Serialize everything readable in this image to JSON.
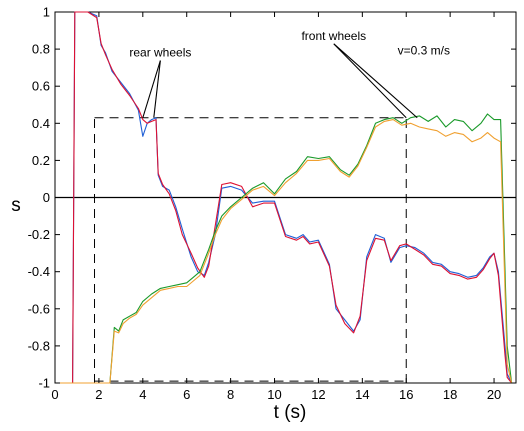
{
  "chart_data": {
    "type": "line",
    "title": "",
    "xlabel": "t (s)",
    "ylabel": "s",
    "xlim": [
      0,
      21
    ],
    "ylim": [
      -1,
      1
    ],
    "xticks": [
      0,
      2,
      4,
      6,
      8,
      10,
      12,
      14,
      16,
      18,
      20
    ],
    "yticks": [
      -1,
      -0.8,
      -0.6,
      -0.4,
      -0.2,
      0,
      0.2,
      0.4,
      0.6,
      0.8,
      1
    ],
    "grid": false,
    "legend": "none",
    "colors": {
      "blue": "#1f5fd6",
      "red": "#dd1133",
      "green": "#1a9a2a",
      "orange": "#f0a030",
      "axis": "#000000"
    },
    "series": [
      {
        "color": "blue",
        "x": [
          0,
          0.8,
          0.9,
          1.1,
          1.5,
          1.9,
          2.1,
          2.3,
          2.6,
          3.0,
          3.4,
          3.8,
          4.0,
          4.2,
          4.4,
          4.6,
          4.7,
          4.9,
          5.2,
          5.5,
          5.8,
          6.2,
          6.5,
          6.8,
          7.0,
          7.3,
          7.6,
          8.0,
          8.5,
          9.0,
          9.5,
          10.0,
          10.5,
          11.0,
          11.3,
          11.6,
          12.0,
          12.5,
          12.8,
          13.2,
          13.6,
          13.9,
          14.2,
          14.6,
          15.0,
          15.3,
          15.7,
          16.0,
          16.4,
          16.8,
          17.2,
          17.6,
          18.0,
          18.4,
          18.8,
          19.2,
          19.5,
          19.8,
          20.0,
          20.2,
          20.5,
          20.6,
          20.8,
          21.0
        ],
        "values": [
          -1,
          -1,
          1,
          1,
          1,
          0.98,
          0.82,
          0.78,
          0.68,
          0.62,
          0.56,
          0.47,
          0.33,
          0.4,
          0.42,
          0.43,
          0.12,
          0.06,
          0.04,
          -0.05,
          -0.17,
          -0.32,
          -0.4,
          -0.42,
          -0.35,
          -0.2,
          0.05,
          0.06,
          0.04,
          -0.03,
          -0.02,
          -0.02,
          -0.2,
          -0.22,
          -0.2,
          -0.24,
          -0.23,
          -0.36,
          -0.6,
          -0.66,
          -0.72,
          -0.66,
          -0.32,
          -0.2,
          -0.22,
          -0.35,
          -0.27,
          -0.26,
          -0.27,
          -0.3,
          -0.35,
          -0.36,
          -0.4,
          -0.41,
          -0.43,
          -0.42,
          -0.38,
          -0.32,
          -0.3,
          -0.4,
          -0.8,
          -0.95,
          -1,
          -1
        ]
      },
      {
        "color": "red",
        "x": [
          0,
          0.8,
          0.9,
          1.1,
          1.5,
          1.9,
          2.1,
          2.3,
          2.6,
          3.0,
          3.4,
          3.8,
          4.0,
          4.2,
          4.4,
          4.6,
          4.7,
          4.9,
          5.2,
          5.5,
          5.8,
          6.2,
          6.5,
          6.8,
          7.0,
          7.3,
          7.6,
          8.0,
          8.5,
          9.0,
          9.5,
          10.0,
          10.5,
          11.0,
          11.3,
          11.6,
          12.0,
          12.5,
          12.8,
          13.2,
          13.6,
          13.9,
          14.2,
          14.6,
          15.0,
          15.3,
          15.7,
          16.0,
          16.4,
          16.8,
          17.2,
          17.6,
          18.0,
          18.4,
          18.8,
          19.2,
          19.5,
          19.8,
          20.0,
          20.2,
          20.5,
          20.6,
          20.8,
          21.0
        ],
        "values": [
          -1,
          -1,
          1,
          1,
          1,
          0.97,
          0.83,
          0.77,
          0.69,
          0.61,
          0.55,
          0.48,
          0.42,
          0.4,
          0.41,
          0.42,
          0.13,
          0.07,
          0.02,
          -0.07,
          -0.2,
          -0.3,
          -0.38,
          -0.43,
          -0.37,
          -0.15,
          0.07,
          0.08,
          0.06,
          -0.05,
          -0.03,
          -0.03,
          -0.21,
          -0.23,
          -0.21,
          -0.25,
          -0.24,
          -0.37,
          -0.58,
          -0.68,
          -0.73,
          -0.64,
          -0.34,
          -0.22,
          -0.23,
          -0.34,
          -0.26,
          -0.25,
          -0.28,
          -0.31,
          -0.36,
          -0.37,
          -0.41,
          -0.42,
          -0.44,
          -0.43,
          -0.39,
          -0.33,
          -0.3,
          -0.42,
          -0.85,
          -0.97,
          -1,
          -1
        ]
      },
      {
        "color": "green",
        "x": [
          0,
          2.5,
          2.7,
          2.9,
          3.1,
          3.4,
          3.7,
          4.0,
          4.4,
          4.8,
          5.2,
          5.6,
          6.0,
          6.3,
          6.6,
          7.0,
          7.3,
          7.6,
          8.0,
          8.5,
          9.0,
          9.5,
          10.0,
          10.5,
          11.0,
          11.5,
          12.0,
          12.5,
          13.0,
          13.4,
          13.8,
          14.2,
          14.6,
          15.0,
          15.4,
          15.8,
          16.2,
          16.6,
          17.0,
          17.4,
          17.8,
          18.2,
          18.6,
          19.0,
          19.4,
          19.7,
          20.0,
          20.3,
          20.6,
          20.8,
          21.0
        ],
        "values": [
          -1,
          -1,
          -0.7,
          -0.72,
          -0.66,
          -0.64,
          -0.62,
          -0.56,
          -0.52,
          -0.49,
          -0.48,
          -0.47,
          -0.46,
          -0.43,
          -0.4,
          -0.28,
          -0.18,
          -0.1,
          -0.05,
          0,
          0.05,
          0.08,
          0.02,
          0.1,
          0.14,
          0.22,
          0.21,
          0.22,
          0.15,
          0.12,
          0.18,
          0.28,
          0.4,
          0.42,
          0.43,
          0.4,
          0.43,
          0.44,
          0.41,
          0.44,
          0.38,
          0.42,
          0.41,
          0.36,
          0.4,
          0.45,
          0.42,
          0.42,
          -0.8,
          -1,
          -1
        ]
      },
      {
        "color": "orange",
        "x": [
          0,
          2.5,
          2.7,
          2.9,
          3.1,
          3.4,
          3.7,
          4.0,
          4.4,
          4.8,
          5.2,
          5.6,
          6.0,
          6.3,
          6.6,
          7.0,
          7.3,
          7.6,
          8.0,
          8.5,
          9.0,
          9.5,
          10.0,
          10.5,
          11.0,
          11.5,
          12.0,
          12.5,
          13.0,
          13.4,
          13.8,
          14.2,
          14.6,
          15.0,
          15.4,
          15.8,
          16.2,
          16.6,
          17.0,
          17.4,
          17.8,
          18.2,
          18.6,
          19.0,
          19.4,
          19.7,
          20.0,
          20.3,
          20.6,
          20.8,
          21.0
        ],
        "values": [
          -1,
          -1,
          -0.72,
          -0.73,
          -0.68,
          -0.65,
          -0.63,
          -0.58,
          -0.54,
          -0.5,
          -0.49,
          -0.48,
          -0.48,
          -0.45,
          -0.42,
          -0.3,
          -0.2,
          -0.12,
          -0.06,
          -0.01,
          0.04,
          0.06,
          0.01,
          0.08,
          0.13,
          0.2,
          0.2,
          0.21,
          0.14,
          0.11,
          0.17,
          0.27,
          0.38,
          0.41,
          0.42,
          0.39,
          0.4,
          0.38,
          0.37,
          0.36,
          0.33,
          0.35,
          0.34,
          0.3,
          0.32,
          0.35,
          0.32,
          0.3,
          -0.9,
          -1,
          -1
        ]
      }
    ],
    "reference_lines": [
      {
        "style": "dashed",
        "x": [
          1.8,
          1.8
        ],
        "y": [
          -1,
          0.43
        ]
      },
      {
        "style": "dashed",
        "x": [
          1.8,
          16.0
        ],
        "y": [
          0.43,
          0.43
        ]
      },
      {
        "style": "dashed",
        "x": [
          16.0,
          16.0
        ],
        "y": [
          -1,
          0.43
        ]
      },
      {
        "style": "dashed",
        "x": [
          1.8,
          16.0
        ],
        "y": [
          -0.99,
          -0.99
        ]
      },
      {
        "style": "solid",
        "x": [
          0,
          21
        ],
        "y": [
          0,
          0
        ]
      }
    ],
    "annotations": [
      {
        "text": "rear wheels",
        "x": 4.8,
        "y": 0.76,
        "arrow_targets": [
          [
            4.0,
            0.43
          ],
          [
            4.5,
            0.43
          ]
        ]
      },
      {
        "text": "front wheels",
        "x": 12.7,
        "y": 0.85,
        "arrow_targets": [
          [
            16.0,
            0.43
          ],
          [
            16.5,
            0.43
          ]
        ]
      },
      {
        "text": "v=0.3 m/s",
        "x": 16.8,
        "y": 0.77
      }
    ]
  }
}
